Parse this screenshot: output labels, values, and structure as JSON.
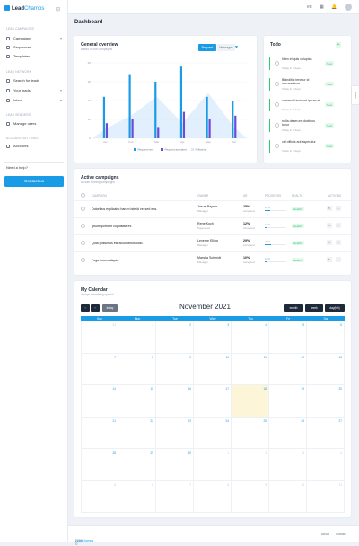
{
  "brand": {
    "name": "Lead",
    "name2": "Champs"
  },
  "sidebar": {
    "sections": [
      {
        "title": "Lead campaigns",
        "items": [
          {
            "label": "Campaigns",
            "chev": "▾"
          },
          {
            "label": "Sequences"
          },
          {
            "label": "Templates"
          }
        ]
      },
      {
        "title": "Lead network",
        "items": [
          {
            "label": "Search for leads"
          },
          {
            "label": "Your leads",
            "chev": "▾"
          },
          {
            "label": "Inbox",
            "chev": "▾"
          }
        ]
      },
      {
        "title": "Lead senders",
        "items": [
          {
            "label": "Manage users"
          }
        ]
      },
      {
        "title": "Account Settings",
        "items": [
          {
            "label": "Accounts"
          }
        ]
      }
    ],
    "help": "Need a help?",
    "contact": "Contact us"
  },
  "topbar": {
    "lang": "en"
  },
  "page_title": "Dashboard",
  "overview": {
    "title": "General overview",
    "subtitle": "Based on the campaigns",
    "toggle_a": "Request",
    "toggle_b": "Messages",
    "legend": [
      "Request sent",
      "Request accepted",
      "Following"
    ]
  },
  "chart_data": {
    "type": "bar",
    "categories": [
      "Jan",
      "Feb",
      "Mar",
      "Apr",
      "May",
      "Jun"
    ],
    "series": [
      {
        "name": "Request sent",
        "values": [
          22,
          34,
          30,
          38,
          22,
          20
        ]
      },
      {
        "name": "Request accepted",
        "values": [
          8,
          10,
          6,
          14,
          10,
          12
        ]
      },
      {
        "name": "Following",
        "values": [
          5,
          12,
          22,
          8,
          24,
          6
        ]
      }
    ],
    "ylim": [
      0,
      40
    ],
    "yticks": [
      0,
      10,
      20,
      30,
      40
    ],
    "colors": [
      "#1a9be6",
      "#6c4bd6",
      "#d6e8fb"
    ]
  },
  "todos": {
    "title": "Todo",
    "add": "+",
    "tab_label": "Todos",
    "items": [
      {
        "text": "Illum et quis voluptas",
        "time": "Today in 2 days",
        "badge": "New"
      },
      {
        "text": "Blanditiis tenetur id accusantium",
        "time": "Today in 2 days",
        "badge": "New"
      },
      {
        "text": "commodi incidunt ipsum et",
        "time": "Today in 2 days",
        "badge": "New"
      },
      {
        "text": "nulla deserunt doctinus tueur",
        "time": "Today in 2 days",
        "badge": "New"
      },
      {
        "text": "vel officiis aut asperatur",
        "time": "Today in 2 days",
        "badge": "New"
      }
    ]
  },
  "campaigns": {
    "title": "Active campaigns",
    "subtitle": "All with running campaigns",
    "headers": [
      "Campaign",
      "Owner",
      "AR",
      "Progress",
      "Health",
      "Actions"
    ],
    "rows": [
      {
        "title": "Doloribus explicabo harum iste id vel sed eos.",
        "owner": "Josue Raynor",
        "role": "Manager",
        "pct": "25%",
        "pct_sub": "Accepted",
        "progress": "25%",
        "progress_value": 0.25,
        "health": "Healthy"
      },
      {
        "title": "Ipsum porro et cupiditate ex.",
        "owner": "Rene Koch",
        "role": "Supervisor",
        "pct": "12%",
        "pct_sub": "Accepted",
        "progress": "12%",
        "progress_value": 0.12,
        "health": "Healthy"
      },
      {
        "title": "Quia possimus est accusamus odio.",
        "owner": "Leverne Elling",
        "role": "Manager",
        "pct": "29%",
        "pct_sub": "Accepted",
        "progress": "29%",
        "progress_value": 0.29,
        "health": "Healthy"
      },
      {
        "title": "Fuga ipsum aliquid.",
        "owner": "Marsha Schmidt",
        "role": "Manager",
        "pct": "10%",
        "pct_sub": "Accepted",
        "progress": "10%",
        "progress_value": 0.1,
        "health": "Healthy"
      }
    ]
  },
  "calendar": {
    "title": "My Calendar",
    "subtitle": "Always something special",
    "month": "November 2021",
    "prev": "‹",
    "next": "›",
    "today": "today",
    "views": [
      "month",
      "week",
      "day(ish)"
    ],
    "days": [
      "Sun",
      "Mon",
      "Tue",
      "Wed",
      "Thu",
      "Fri",
      "Sat"
    ],
    "weeks": [
      [
        {
          "d": "31",
          "o": true
        },
        {
          "d": "1"
        },
        {
          "d": "2"
        },
        {
          "d": "3"
        },
        {
          "d": "4"
        },
        {
          "d": "5"
        },
        {
          "d": "6"
        }
      ],
      [
        {
          "d": "7"
        },
        {
          "d": "8"
        },
        {
          "d": "9"
        },
        {
          "d": "10"
        },
        {
          "d": "11"
        },
        {
          "d": "12"
        },
        {
          "d": "13"
        }
      ],
      [
        {
          "d": "14"
        },
        {
          "d": "15"
        },
        {
          "d": "16"
        },
        {
          "d": "17"
        },
        {
          "d": "18",
          "t": true
        },
        {
          "d": "19"
        },
        {
          "d": "20"
        }
      ],
      [
        {
          "d": "21"
        },
        {
          "d": "22"
        },
        {
          "d": "23"
        },
        {
          "d": "24"
        },
        {
          "d": "25"
        },
        {
          "d": "26"
        },
        {
          "d": "27"
        }
      ],
      [
        {
          "d": "28"
        },
        {
          "d": "29"
        },
        {
          "d": "30"
        },
        {
          "d": "1",
          "o": true
        },
        {
          "d": "2",
          "o": true
        },
        {
          "d": "3",
          "o": true
        },
        {
          "d": "4",
          "o": true
        }
      ],
      [
        {
          "d": "5",
          "o": true
        },
        {
          "d": "6",
          "o": true
        },
        {
          "d": "7",
          "o": true
        },
        {
          "d": "8",
          "o": true
        },
        {
          "d": "9",
          "o": true
        },
        {
          "d": "10",
          "o": true
        },
        {
          "d": "11",
          "o": true
        }
      ]
    ]
  },
  "footer": {
    "copy": "2021 © ",
    "brand": "LeadChamps",
    "about": "About",
    "contact": "Contact"
  }
}
